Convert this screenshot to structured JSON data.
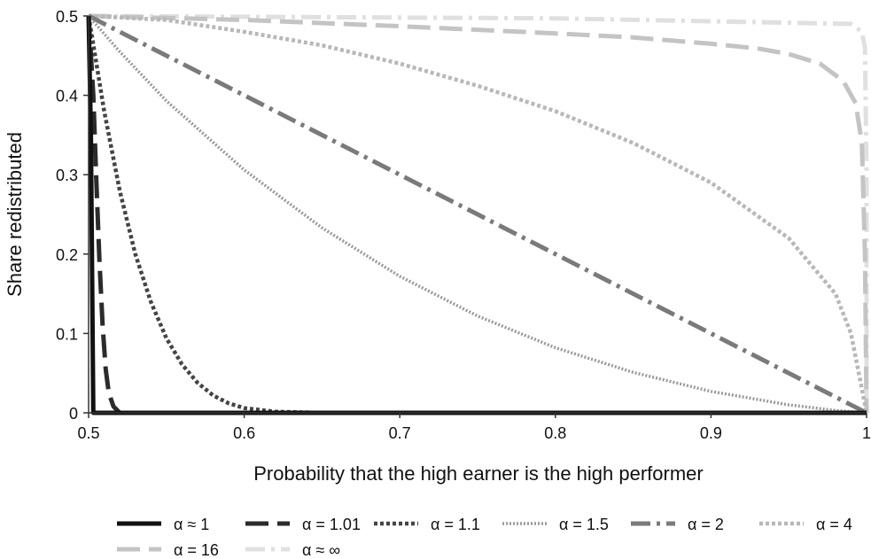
{
  "chart_data": {
    "type": "line",
    "title": "",
    "xlabel": "Probability that the high earner is the high performer",
    "ylabel": "Share redistributed",
    "xlim": [
      0.5,
      1.0
    ],
    "ylim": [
      0,
      0.5
    ],
    "x_ticks": [
      0.5,
      0.6,
      0.7,
      0.8,
      0.9,
      1.0
    ],
    "x_tick_labels": [
      "0.5",
      "0.6",
      "0.7",
      "0.8",
      "0.9",
      "1"
    ],
    "y_ticks": [
      0,
      0.1,
      0.2,
      0.3,
      0.4,
      0.5
    ],
    "y_tick_labels": [
      "0",
      "0.1",
      "0.2",
      "0.3",
      "0.4",
      "0.5"
    ],
    "grid": false,
    "legend_position": "bottom",
    "series": [
      {
        "name": "α ≈ 1",
        "color": "#111111",
        "dash": "solid",
        "x": [
          0.5,
          0.5015,
          0.503,
          0.6,
          0.8,
          1.0
        ],
        "y": [
          0.5,
          0.35,
          0.0,
          0.0,
          0.0,
          0.0
        ]
      },
      {
        "name": "α = 1.01",
        "color": "#2b2b2b",
        "dash": "longdash",
        "x": [
          0.5,
          0.503,
          0.505,
          0.507,
          0.509,
          0.511,
          0.513,
          0.516,
          0.52,
          0.6,
          1.0
        ],
        "y": [
          0.5,
          0.4,
          0.29,
          0.19,
          0.11,
          0.055,
          0.025,
          0.008,
          0.0,
          0.0,
          0.0
        ]
      },
      {
        "name": "α = 1.1",
        "color": "#444444",
        "dash": "dotted",
        "x": [
          0.5,
          0.51,
          0.52,
          0.53,
          0.54,
          0.55,
          0.56,
          0.57,
          0.58,
          0.59,
          0.6,
          0.62,
          0.65,
          0.7,
          1.0
        ],
        "y": [
          0.5,
          0.38,
          0.28,
          0.2,
          0.14,
          0.094,
          0.061,
          0.038,
          0.022,
          0.012,
          0.006,
          0.0015,
          0.0,
          0.0,
          0.0
        ]
      },
      {
        "name": "α = 1.5",
        "color": "#9a9a9a",
        "dash": "thindot",
        "x": [
          0.5,
          0.52,
          0.55,
          0.6,
          0.65,
          0.7,
          0.75,
          0.8,
          0.85,
          0.9,
          0.95,
          0.98,
          1.0
        ],
        "y": [
          0.5,
          0.455,
          0.393,
          0.306,
          0.233,
          0.172,
          0.122,
          0.082,
          0.051,
          0.027,
          0.01,
          0.003,
          0.0
        ]
      },
      {
        "name": "α = 2",
        "color": "#7a7a7a",
        "dash": "dashdot",
        "x": [
          0.5,
          1.0
        ],
        "y": [
          0.5,
          0.0
        ]
      },
      {
        "name": "α = 4",
        "color": "#b8b8b8",
        "dash": "dotted",
        "x": [
          0.5,
          0.55,
          0.6,
          0.65,
          0.7,
          0.75,
          0.8,
          0.85,
          0.9,
          0.95,
          0.98,
          0.99,
          0.995,
          1.0
        ],
        "y": [
          0.5,
          0.495,
          0.48,
          0.463,
          0.44,
          0.412,
          0.38,
          0.34,
          0.29,
          0.22,
          0.15,
          0.1,
          0.05,
          0.0
        ]
      },
      {
        "name": "α = 16",
        "color": "#c4c4c4",
        "dash": "longdash",
        "x": [
          0.5,
          0.6,
          0.7,
          0.8,
          0.85,
          0.9,
          0.93,
          0.95,
          0.97,
          0.985,
          0.993,
          0.997,
          0.999,
          1.0
        ],
        "y": [
          0.5,
          0.495,
          0.487,
          0.478,
          0.473,
          0.465,
          0.459,
          0.452,
          0.44,
          0.418,
          0.39,
          0.34,
          0.2,
          0.0
        ]
      },
      {
        "name": "α ≈ ∞",
        "color": "#e0e0e0",
        "dash": "dashdot",
        "x": [
          0.5,
          0.8,
          0.99,
          0.997,
          0.999,
          1.0,
          1.0
        ],
        "y": [
          0.5,
          0.497,
          0.49,
          0.48,
          0.46,
          0.3,
          0.0
        ]
      }
    ]
  }
}
